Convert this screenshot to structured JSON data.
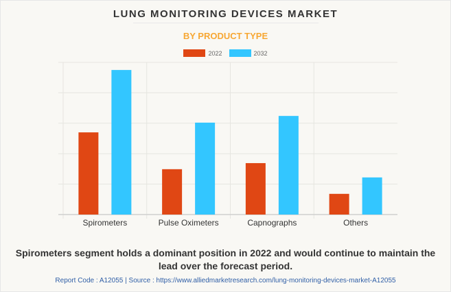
{
  "header": {
    "title": "LUNG MONITORING DEVICES MARKET",
    "subtitle": "BY PRODUCT TYPE"
  },
  "legend": [
    {
      "label": "2022",
      "color": "#e04714"
    },
    {
      "label": "2032",
      "color": "#33c6ff"
    }
  ],
  "chart_data": {
    "type": "bar",
    "title": "LUNG MONITORING DEVICES MARKET",
    "subtitle": "BY PRODUCT TYPE",
    "xlabel": "",
    "ylabel": "",
    "categories": [
      "Spirometers",
      "Pulse Oximeters",
      "Capnographs",
      "Others"
    ],
    "series": [
      {
        "name": "2022",
        "color": "#e04714",
        "values": [
          2.7,
          1.49,
          1.69,
          0.68
        ]
      },
      {
        "name": "2032",
        "color": "#33c6ff",
        "values": [
          4.75,
          3.02,
          3.24,
          1.22
        ]
      }
    ],
    "ylim": [
      0,
      5
    ],
    "y_gridlines": 5,
    "y_tick_labels_shown": false,
    "grid": true,
    "legend_position": "top-center",
    "units_note": "relative units (no y-axis labels shown)"
  },
  "footer": {
    "caption": "Spirometers segment holds a dominant position in 2022 and would continue to maintain the lead over the forecast period.",
    "source": "Report Code : A12055  |  Source : https://www.alliedmarketresearch.com/lung-monitoring-devices-market-A12055"
  }
}
